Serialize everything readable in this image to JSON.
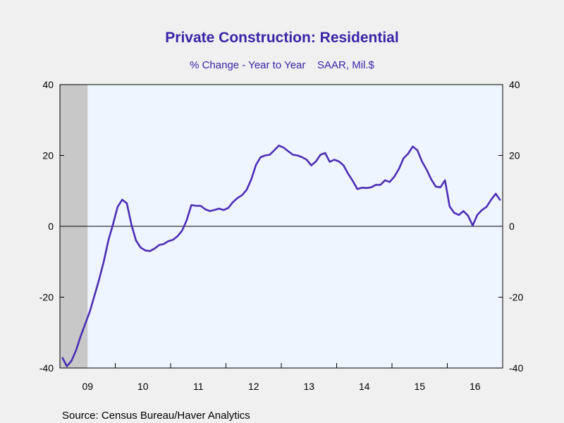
{
  "colors": {
    "background": "#f0f0f0",
    "plot_background": "#eef5ff",
    "line": "#4b2fb5",
    "title": "#3a24a8",
    "recession": "#c8c8c8"
  },
  "source": "Source:  Census Bureau/Haver Analytics",
  "chart_data": {
    "type": "line",
    "title": "Private Construction: Residential",
    "subtitle": "% Change - Year to Year    SAAR, Mil.$",
    "xlabel": "",
    "ylabel": "",
    "ylim": [
      -40,
      40
    ],
    "y_ticks": [
      -40,
      -20,
      0,
      20,
      40
    ],
    "x_tick_labels": [
      "09",
      "10",
      "11",
      "12",
      "13",
      "14",
      "15",
      "16"
    ],
    "x_range": [
      "2009-01",
      "2016-12"
    ],
    "grid": false,
    "zero_line": true,
    "recession_shading": {
      "start": "2009-01",
      "end": "2009-06"
    },
    "series": [
      {
        "x": [
          "2009-01",
          "2009-02",
          "2009-03",
          "2009-04",
          "2009-05",
          "2009-06",
          "2009-07",
          "2009-08",
          "2009-09",
          "2009-10",
          "2009-11",
          "2009-12",
          "2010-01",
          "2010-02",
          "2010-03",
          "2010-04",
          "2010-05",
          "2010-06",
          "2010-07",
          "2010-08",
          "2010-09",
          "2010-10",
          "2010-11",
          "2010-12",
          "2011-01",
          "2011-02",
          "2011-03",
          "2011-04",
          "2011-05",
          "2011-06",
          "2011-07",
          "2011-08",
          "2011-09",
          "2011-10",
          "2011-11",
          "2011-12",
          "2012-01",
          "2012-02",
          "2012-03",
          "2012-04",
          "2012-05",
          "2012-06",
          "2012-07",
          "2012-08",
          "2012-09",
          "2012-10",
          "2012-11",
          "2012-12",
          "2013-01",
          "2013-02",
          "2013-03",
          "2013-04",
          "2013-05",
          "2013-06",
          "2013-07",
          "2013-08",
          "2013-09",
          "2013-10",
          "2013-11",
          "2013-12",
          "2014-01",
          "2014-02",
          "2014-03",
          "2014-04",
          "2014-05",
          "2014-06",
          "2014-07",
          "2014-08",
          "2014-09",
          "2014-10",
          "2014-11",
          "2014-12",
          "2015-01",
          "2015-02",
          "2015-03",
          "2015-04",
          "2015-05",
          "2015-06",
          "2015-07",
          "2015-08",
          "2015-09",
          "2015-10",
          "2015-11",
          "2015-12",
          "2016-01",
          "2016-02",
          "2016-03",
          "2016-04",
          "2016-05",
          "2016-06",
          "2016-07",
          "2016-08",
          "2016-09",
          "2016-10",
          "2016-11",
          "2016-12"
        ],
        "values": [
          -37.0,
          -39.5,
          -38.0,
          -35.0,
          -31.0,
          -27.5,
          -24.0,
          -19.5,
          -15.0,
          -10.0,
          -4.0,
          0.5,
          5.5,
          7.5,
          6.5,
          0.5,
          -4.0,
          -6.0,
          -6.8,
          -7.0,
          -6.3,
          -5.3,
          -5.0,
          -4.2,
          -3.8,
          -2.8,
          -1.2,
          1.8,
          6.0,
          5.8,
          5.8,
          4.8,
          4.3,
          4.6,
          5.0,
          4.6,
          5.2,
          6.8,
          8.0,
          8.8,
          10.3,
          13.3,
          17.3,
          19.5,
          20.0,
          20.2,
          21.5,
          22.8,
          22.2,
          21.2,
          20.2,
          20.0,
          19.5,
          18.8,
          17.2,
          18.3,
          20.2,
          20.7,
          18.2,
          18.8,
          18.3,
          17.2,
          14.8,
          12.8,
          10.5,
          10.9,
          10.8,
          11.0,
          11.7,
          11.7,
          13.0,
          12.5,
          14.0,
          16.2,
          19.2,
          20.5,
          22.5,
          21.5,
          18.3,
          16.0,
          13.3,
          11.2,
          11.0,
          13.0,
          5.6,
          3.8,
          3.2,
          4.3,
          3.0,
          0.2,
          3.2,
          4.6,
          5.5,
          7.5,
          9.2,
          7.3
        ]
      }
    ]
  }
}
